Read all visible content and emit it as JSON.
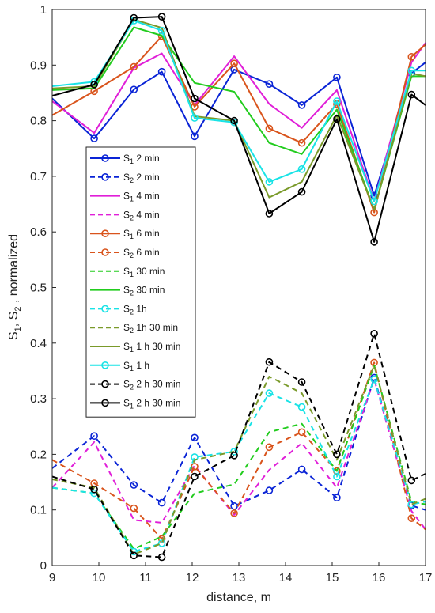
{
  "chart_data": {
    "type": "line",
    "title": "",
    "xlabel": "distance, m",
    "ylabel_parts": [
      "S",
      "1",
      ", S",
      "2",
      " , normalized"
    ],
    "xlim": [
      9,
      17
    ],
    "ylim": [
      0,
      1
    ],
    "xticks": [
      "9",
      "10",
      "11",
      "12",
      "13",
      "14",
      "15",
      "16",
      "17"
    ],
    "yticks": [
      "0",
      "0.1",
      "0.2",
      "0.3",
      "0.4",
      "0.5",
      "0.6",
      "0.7",
      "0.8",
      "0.9",
      "1"
    ],
    "x": [
      9.0,
      9.9,
      10.75,
      11.35,
      12.05,
      12.9,
      13.65,
      14.35,
      15.1,
      15.9,
      16.7,
      17.0
    ],
    "grid": false,
    "legend_position": "center-left",
    "series": [
      {
        "name": "2 min",
        "sym": "S",
        "sub": "1",
        "color": "#0a24d6",
        "dash": false,
        "marker": true,
        "values": [
          0.84,
          0.768,
          0.856,
          0.888,
          0.772,
          0.892,
          0.866,
          0.828,
          0.878,
          0.665,
          0.885,
          0.905
        ]
      },
      {
        "name": "2 min",
        "sym": "S",
        "sub": "2",
        "color": "#0a24d6",
        "dash": true,
        "marker": true,
        "values": [
          0.175,
          0.233,
          0.145,
          0.113,
          0.23,
          0.107,
          0.135,
          0.173,
          0.122,
          0.338,
          0.108,
          0.1
        ]
      },
      {
        "name": "4 min",
        "sym": "S",
        "sub": "1",
        "color": "#e01fd8",
        "dash": false,
        "marker": false,
        "values": [
          0.835,
          0.778,
          0.895,
          0.921,
          0.828,
          0.916,
          0.83,
          0.787,
          0.855,
          0.655,
          0.905,
          0.94
        ]
      },
      {
        "name": "4 min",
        "sym": "S",
        "sub": "2",
        "color": "#e01fd8",
        "dash": true,
        "marker": false,
        "values": [
          0.14,
          0.222,
          0.082,
          0.077,
          0.18,
          0.091,
          0.172,
          0.22,
          0.14,
          0.335,
          0.098,
          0.065
        ]
      },
      {
        "name": "6 min",
        "sym": "S",
        "sub": "1",
        "color": "#d9541c",
        "dash": false,
        "marker": true,
        "values": [
          0.81,
          0.853,
          0.897,
          0.952,
          0.825,
          0.903,
          0.786,
          0.76,
          0.83,
          0.635,
          0.915,
          0.937
        ]
      },
      {
        "name": "6 min",
        "sym": "S",
        "sub": "2",
        "color": "#d9541c",
        "dash": true,
        "marker": true,
        "values": [
          0.19,
          0.148,
          0.103,
          0.048,
          0.178,
          0.094,
          0.213,
          0.24,
          0.17,
          0.365,
          0.085,
          0.065
        ]
      },
      {
        "name": "30 min",
        "sym": "S",
        "sub": "1",
        "color": "#22cc1e",
        "dash": true,
        "marker": false,
        "values": [
          0.14,
          0.13,
          0.03,
          0.052,
          0.13,
          0.146,
          0.24,
          0.255,
          0.17,
          0.36,
          0.115,
          0.11
        ]
      },
      {
        "name": "30 min",
        "sym": "S",
        "sub": "2",
        "color": "#22cc1e",
        "dash": false,
        "marker": false,
        "values": [
          0.855,
          0.858,
          0.968,
          0.953,
          0.868,
          0.852,
          0.76,
          0.74,
          0.82,
          0.64,
          0.88,
          0.88
        ]
      },
      {
        "name": "1h",
        "sym": "S",
        "sub": "2",
        "color": "#19e3e6",
        "dash": true,
        "marker": true,
        "values": [
          0.14,
          0.13,
          0.025,
          0.04,
          0.195,
          0.205,
          0.31,
          0.285,
          0.16,
          0.335,
          0.11,
          0.115
        ]
      },
      {
        "name": "1h 30 min",
        "sym": "S",
        "sub": "2",
        "color": "#7a9a2a",
        "dash": true,
        "marker": false,
        "values": [
          0.155,
          0.14,
          0.02,
          0.04,
          0.19,
          0.205,
          0.34,
          0.31,
          0.19,
          0.36,
          0.11,
          0.12
        ]
      },
      {
        "name": "1 h 30 min",
        "sym": "S",
        "sub": "1",
        "color": "#7a9a2a",
        "dash": false,
        "marker": false,
        "values": [
          0.858,
          0.862,
          0.982,
          0.967,
          0.808,
          0.8,
          0.662,
          0.69,
          0.81,
          0.64,
          0.885,
          0.88
        ]
      },
      {
        "name": "1 h",
        "sym": "S",
        "sub": "1",
        "color": "#19e3e6",
        "dash": false,
        "marker": true,
        "values": [
          0.862,
          0.87,
          0.98,
          0.962,
          0.805,
          0.797,
          0.69,
          0.713,
          0.835,
          0.655,
          0.89,
          0.89
        ]
      },
      {
        "name": "2 h 30 min",
        "sym": "S",
        "sub": "2",
        "color": "#000000",
        "dash": true,
        "marker": true,
        "values": [
          0.16,
          0.137,
          0.018,
          0.015,
          0.16,
          0.198,
          0.366,
          0.33,
          0.2,
          0.417,
          0.153,
          0.165
        ]
      },
      {
        "name": "2 h 30 min",
        "sym": "S",
        "sub": "1",
        "color": "#000000",
        "dash": false,
        "marker": true,
        "values": [
          0.845,
          0.865,
          0.985,
          0.987,
          0.84,
          0.8,
          0.633,
          0.672,
          0.803,
          0.582,
          0.847,
          0.828
        ]
      }
    ]
  }
}
